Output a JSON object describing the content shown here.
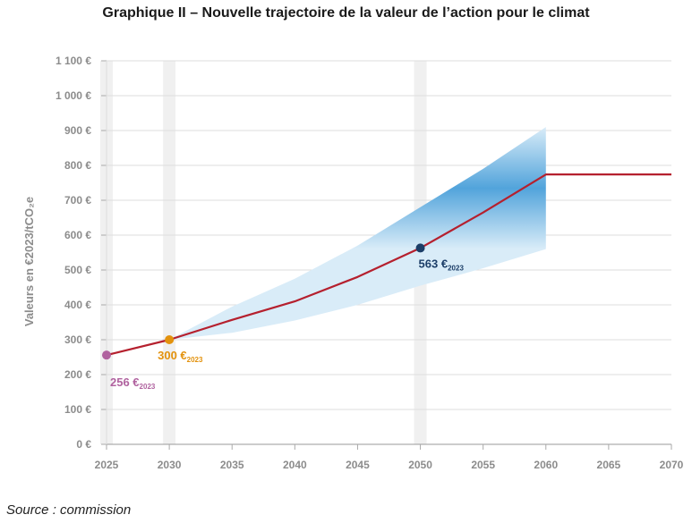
{
  "title": "Graphique II – Nouvelle trajectoire de la valeur de l’action pour le climat",
  "source": "Source : commission",
  "chart_data": {
    "type": "line",
    "title": "Graphique II – Nouvelle trajectoire de la valeur de l’action pour le climat",
    "ylabel": "Valeurs en €2023/tCO₂e",
    "xlabel": "",
    "xlim": [
      2025,
      2070
    ],
    "ylim": [
      0,
      1100
    ],
    "x_ticks": [
      "2025",
      "2030",
      "2035",
      "2040",
      "2045",
      "2050",
      "2055",
      "2060",
      "2065",
      "2070"
    ],
    "y_ticks": [
      "0 €",
      "100 €",
      "200 €",
      "300 €",
      "400 €",
      "500 €",
      "600 €",
      "700 €",
      "800 €",
      "900 €",
      "1 000 €",
      "1 100 €"
    ],
    "y_tick_values": [
      0,
      100,
      200,
      300,
      400,
      500,
      600,
      700,
      800,
      900,
      1000,
      1100
    ],
    "x_tick_values": [
      2025,
      2030,
      2035,
      2040,
      2045,
      2050,
      2055,
      2060,
      2065,
      2070
    ],
    "grid": true,
    "highlight_years": [
      2025,
      2030,
      2050
    ],
    "series": [
      {
        "x": [
          2025,
          2030,
          2035,
          2040,
          2045,
          2050,
          2055,
          2060,
          2065,
          2070
        ],
        "values": [
          256,
          300,
          357,
          410,
          480,
          563,
          665,
          774,
          774,
          774
        ],
        "color": "#b5202e"
      }
    ],
    "uncertainty_band": {
      "x": [
        2030,
        2035,
        2040,
        2045,
        2050,
        2055,
        2060
      ],
      "lower": [
        300,
        320,
        355,
        400,
        455,
        505,
        560
      ],
      "upper": [
        300,
        395,
        475,
        570,
        680,
        790,
        910
      ],
      "color": "#3a97d6"
    },
    "annotations": [
      {
        "x": 2025,
        "y": 256,
        "value": "256 €",
        "sub": "2023",
        "color": "#b0629f"
      },
      {
        "x": 2030,
        "y": 300,
        "value": "300 €",
        "sub": "2023",
        "color": "#e3920d"
      },
      {
        "x": 2050,
        "y": 563,
        "value": "563 €",
        "sub": "2023",
        "color": "#1c3e68"
      }
    ]
  }
}
